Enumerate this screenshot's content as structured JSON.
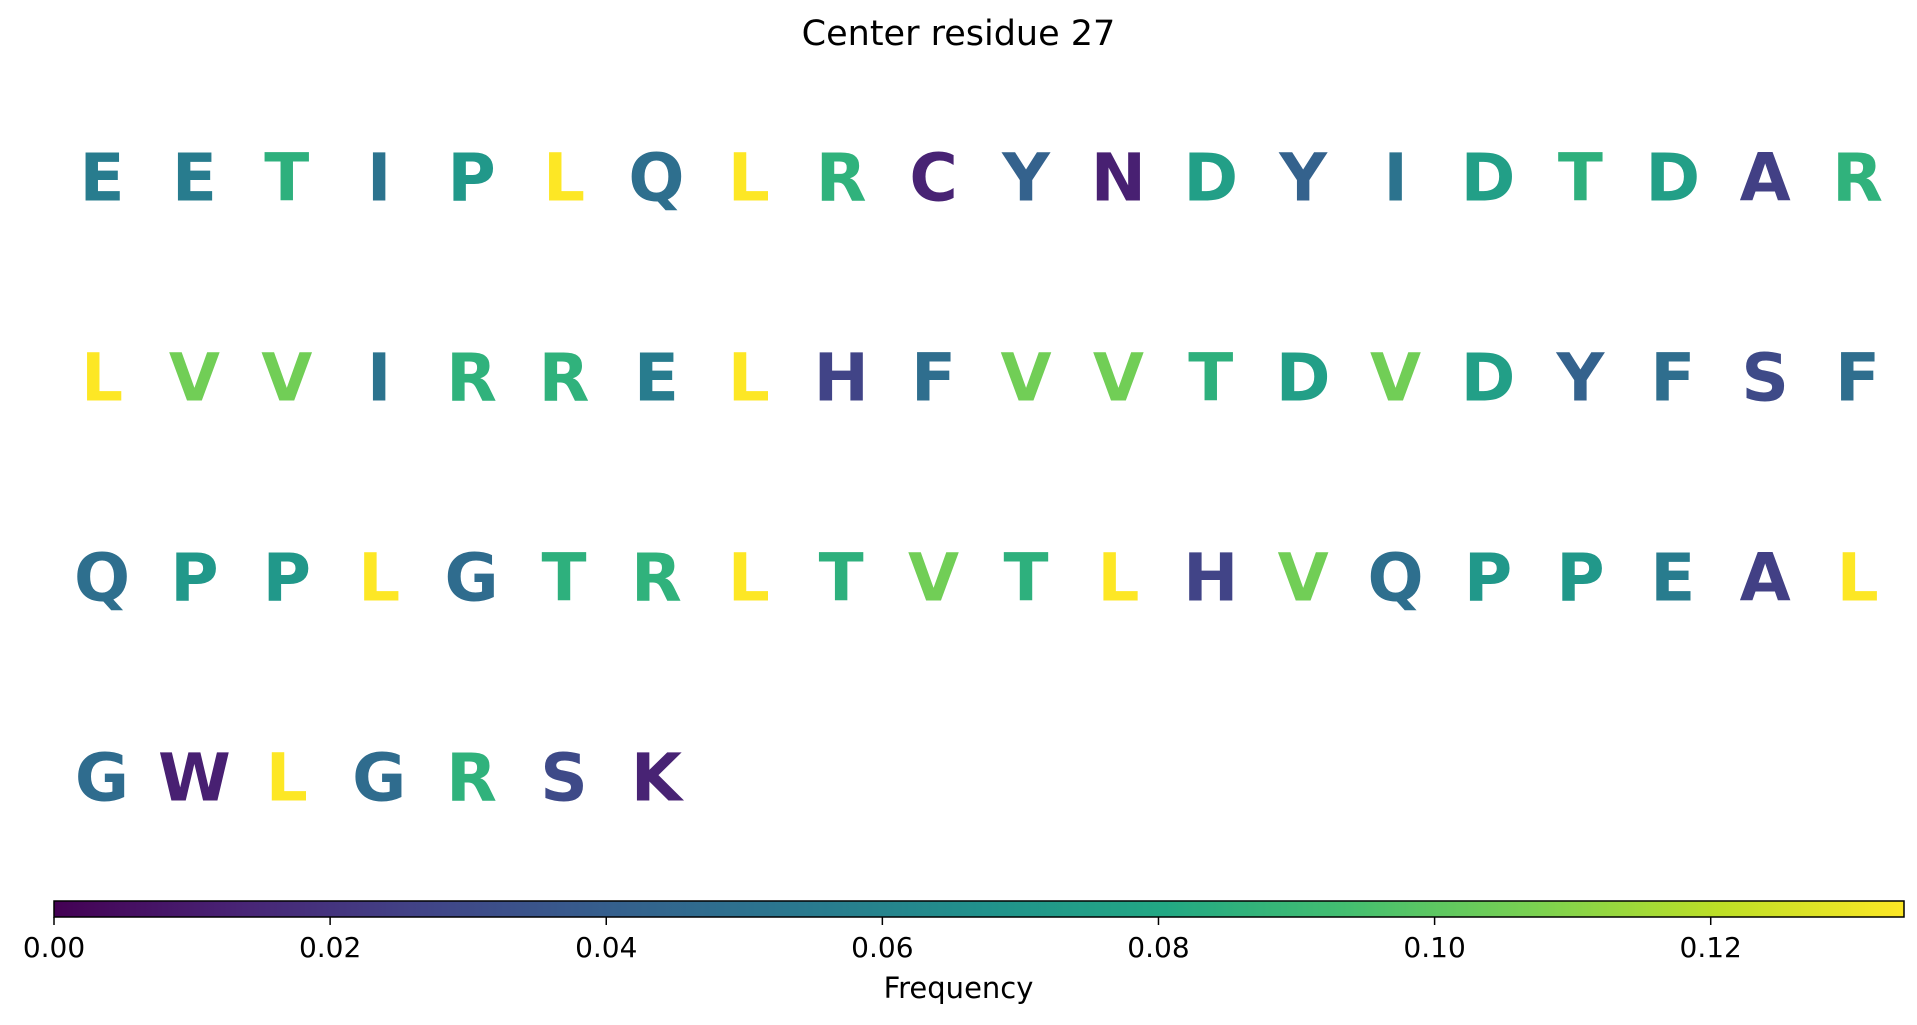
{
  "chart_data": {
    "type": "heatmap",
    "title": "Center residue 27",
    "colorbar": {
      "label": "Frequency",
      "range": [
        0.0,
        0.134
      ],
      "colormap": "viridis",
      "ticks": [
        {
          "value": 0.0,
          "label": "0.00"
        },
        {
          "value": 0.02,
          "label": "0.02"
        },
        {
          "value": 0.04,
          "label": "0.04"
        },
        {
          "value": 0.06,
          "label": "0.06"
        },
        {
          "value": 0.08,
          "label": "0.08"
        },
        {
          "value": 0.1,
          "label": "0.10"
        },
        {
          "value": 0.12,
          "label": "0.12"
        }
      ]
    },
    "frequencies": {
      "A": 0.025,
      "C": 0.013,
      "D": 0.075,
      "E": 0.056,
      "F": 0.048,
      "G": 0.047,
      "H": 0.027,
      "I": 0.051,
      "K": 0.013,
      "L": 0.134,
      "N": 0.012,
      "P": 0.071,
      "Q": 0.049,
      "R": 0.086,
      "S": 0.03,
      "T": 0.085,
      "V": 0.105,
      "W": 0.012,
      "Y": 0.042
    },
    "sequence": [
      "E",
      "E",
      "T",
      "I",
      "P",
      "L",
      "Q",
      "L",
      "R",
      "C",
      "Y",
      "N",
      "D",
      "Y",
      "I",
      "D",
      "T",
      "D",
      "A",
      "R",
      "L",
      "V",
      "V",
      "I",
      "R",
      "R",
      "E",
      "L",
      "H",
      "F",
      "V",
      "V",
      "T",
      "D",
      "V",
      "D",
      "Y",
      "F",
      "S",
      "F",
      "Q",
      "P",
      "P",
      "L",
      "G",
      "T",
      "R",
      "L",
      "T",
      "V",
      "T",
      "L",
      "H",
      "V",
      "Q",
      "P",
      "P",
      "E",
      "A",
      "L",
      "G",
      "W",
      "L",
      "G",
      "R",
      "S",
      "K"
    ]
  }
}
